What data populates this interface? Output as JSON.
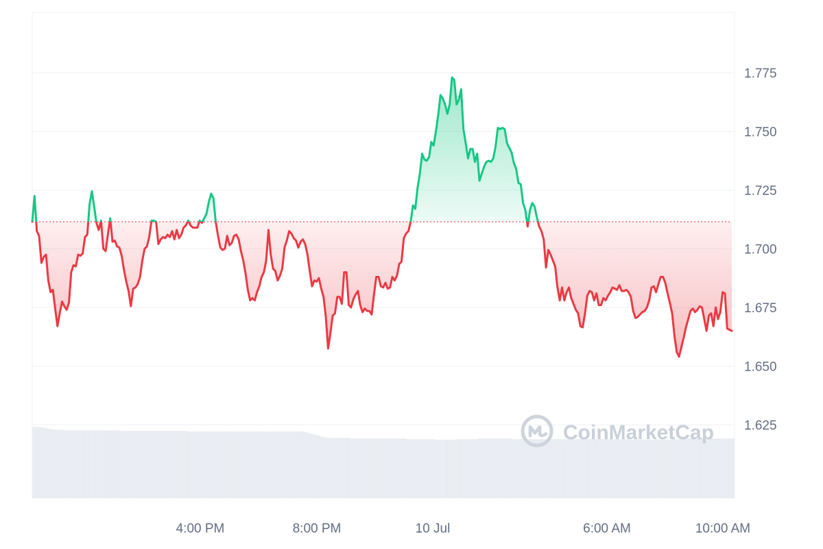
{
  "chart_data": {
    "type": "area",
    "x_range": [
      "09 Jul 11:00",
      "10 Jul 11:00"
    ],
    "x_tick_labels": [
      "4:00 PM",
      "8:00 PM",
      "10 Jul",
      "6:00 AM",
      "10:00 AM"
    ],
    "y_tick_labels": [
      "1.775",
      "1.750",
      "1.725",
      "1.700",
      "1.675",
      "1.650",
      "1.625"
    ],
    "y_ticks": [
      1.775,
      1.75,
      1.725,
      1.7,
      1.675,
      1.65,
      1.625
    ],
    "ylim": [
      1.6,
      1.8
    ],
    "baseline": 1.7115,
    "grid": true,
    "colors": {
      "up": "#16c784",
      "down": "#ea3943",
      "up_fill": "#16c784",
      "down_fill": "#ea3943",
      "baseline": "#ea3943",
      "grid": "#eff2f5",
      "volume": "#e3e7ee",
      "watermark": "#c8d0da"
    },
    "series": [
      {
        "values": [
          1.7115,
          1.7225,
          1.7075,
          1.7055,
          1.694,
          1.6965,
          1.6975,
          1.6865,
          1.6815,
          1.6825,
          1.6745,
          1.667,
          1.6725,
          1.6775,
          1.6755,
          1.674,
          1.677,
          1.69,
          1.693,
          1.6925,
          1.6975,
          1.697,
          1.698,
          1.705,
          1.706,
          1.719,
          1.7245,
          1.718,
          1.711,
          1.708,
          1.712,
          1.7,
          1.699,
          1.706,
          1.713,
          1.703,
          1.7035,
          1.701,
          1.7005,
          1.697,
          1.691,
          1.686,
          1.682,
          1.6755,
          1.683,
          1.6835,
          1.685,
          1.688,
          1.695,
          1.7,
          1.701,
          1.705,
          1.712,
          1.712,
          1.7115,
          1.702,
          1.704,
          1.705,
          1.7045,
          1.706,
          1.705,
          1.7075,
          1.704,
          1.708,
          1.7045,
          1.706,
          1.709,
          1.71,
          1.712,
          1.71,
          1.709,
          1.709,
          1.709,
          1.712,
          1.711,
          1.713,
          1.715,
          1.72,
          1.7235,
          1.7215,
          1.7115,
          1.7055,
          1.7005,
          1.6995,
          1.7,
          1.7055,
          1.7015,
          1.7025,
          1.7055,
          1.706,
          1.704,
          1.699,
          1.695,
          1.6895,
          1.6825,
          1.678,
          1.679,
          1.678,
          1.6815,
          1.684,
          1.688,
          1.69,
          1.695,
          1.708,
          1.6975,
          1.6915,
          1.6905,
          1.6865,
          1.6885,
          1.6915,
          1.7005,
          1.7035,
          1.7075,
          1.7065,
          1.7045,
          1.7035,
          1.7005,
          1.703,
          1.704,
          1.702,
          1.6975,
          1.6905,
          1.684,
          1.6865,
          1.686,
          1.6875,
          1.683,
          1.6795,
          1.671,
          1.6575,
          1.664,
          1.6715,
          1.6725,
          1.6795,
          1.6795,
          1.6765,
          1.69,
          1.69,
          1.676,
          1.675,
          1.6785,
          1.6805,
          1.682,
          1.676,
          1.673,
          1.6745,
          1.6735,
          1.6735,
          1.672,
          1.6805,
          1.688,
          1.688,
          1.684,
          1.6835,
          1.6855,
          1.683,
          1.6835,
          1.688,
          1.6865,
          1.6885,
          1.6935,
          1.6945,
          1.7045,
          1.7065,
          1.7075,
          1.7115,
          1.7185,
          1.717,
          1.726,
          1.732,
          1.7405,
          1.738,
          1.7375,
          1.739,
          1.7455,
          1.744,
          1.75,
          1.757,
          1.7655,
          1.764,
          1.7615,
          1.7575,
          1.7615,
          1.773,
          1.772,
          1.7615,
          1.7635,
          1.768,
          1.751,
          1.745,
          1.7385,
          1.7425,
          1.7425,
          1.737,
          1.7405,
          1.729,
          1.732,
          1.735,
          1.737,
          1.7375,
          1.737,
          1.7385,
          1.7435,
          1.7515,
          1.751,
          1.7515,
          1.751,
          1.745,
          1.743,
          1.741,
          1.7365,
          1.734,
          1.728,
          1.7275,
          1.7195,
          1.7165,
          1.7095,
          1.7165,
          1.7195,
          1.718,
          1.7135,
          1.7095,
          1.7075,
          1.704,
          1.692,
          1.6995,
          1.6975,
          1.695,
          1.6925,
          1.6835,
          1.678,
          1.6835,
          1.678,
          1.6815,
          1.6835,
          1.679,
          1.6765,
          1.674,
          1.6725,
          1.667,
          1.6665,
          1.6725,
          1.68,
          1.682,
          1.6815,
          1.678,
          1.681,
          1.676,
          1.676,
          1.679,
          1.678,
          1.68,
          1.6815,
          1.6835,
          1.683,
          1.6825,
          1.6845,
          1.682,
          1.682,
          1.6825,
          1.6815,
          1.6795,
          1.6735,
          1.6705,
          1.671,
          1.672,
          1.673,
          1.6735,
          1.675,
          1.678,
          1.6835,
          1.684,
          1.6815,
          1.685,
          1.688,
          1.688,
          1.6855,
          1.681,
          1.677,
          1.6725,
          1.663,
          1.656,
          1.654,
          1.658,
          1.662,
          1.6665,
          1.67,
          1.6735,
          1.6745,
          1.673,
          1.674,
          1.6755,
          1.675,
          1.67,
          1.665,
          1.6715,
          1.6725,
          1.667,
          1.675,
          1.67,
          1.673,
          1.6815,
          1.681,
          1.666,
          1.6655,
          1.665
        ]
      }
    ],
    "volume": [
      0.122,
      0.122,
      0.122,
      0.122,
      0.121,
      0.121,
      0.12,
      0.119,
      0.118,
      0.118,
      0.117,
      0.117,
      0.117,
      0.117,
      0.117,
      0.116,
      0.116,
      0.116,
      0.116,
      0.116,
      0.116,
      0.116,
      0.116,
      0.116,
      0.116,
      0.116,
      0.116,
      0.116,
      0.116,
      0.116,
      0.116,
      0.116,
      0.116,
      0.116,
      0.116,
      0.116,
      0.116,
      0.116,
      0.116,
      0.116,
      0.116,
      0.115,
      0.115,
      0.115,
      0.115,
      0.115,
      0.115,
      0.115,
      0.115,
      0.115,
      0.115,
      0.115,
      0.115,
      0.115,
      0.115,
      0.115,
      0.115,
      0.115,
      0.115,
      0.115,
      0.115,
      0.115,
      0.115,
      0.115,
      0.115,
      0.115,
      0.115,
      0.115,
      0.115,
      0.115,
      0.115,
      0.115,
      0.114,
      0.114,
      0.114,
      0.114,
      0.114,
      0.114,
      0.114,
      0.114,
      0.114,
      0.114,
      0.114,
      0.114,
      0.114,
      0.114,
      0.114,
      0.114,
      0.114,
      0.114,
      0.114,
      0.114,
      0.114,
      0.114,
      0.114,
      0.114,
      0.114,
      0.114,
      0.114,
      0.114,
      0.114,
      0.114,
      0.114,
      0.114,
      0.114,
      0.114,
      0.114,
      0.114,
      0.114,
      0.114,
      0.114,
      0.114,
      0.114,
      0.114,
      0.114,
      0.114,
      0.114,
      0.114,
      0.114,
      0.114,
      0.114,
      0.114,
      0.114,
      0.114,
      0.114,
      0.114,
      0.113,
      0.112,
      0.111,
      0.11,
      0.109,
      0.108,
      0.107,
      0.106,
      0.105,
      0.104,
      0.104,
      0.103,
      0.103,
      0.103,
      0.103,
      0.103,
      0.103,
      0.103,
      0.103,
      0.103,
      0.103,
      0.102,
      0.102,
      0.102,
      0.102,
      0.102,
      0.102,
      0.102,
      0.102,
      0.102,
      0.102,
      0.102,
      0.102,
      0.102,
      0.102,
      0.102,
      0.102,
      0.102,
      0.102,
      0.102,
      0.102,
      0.102,
      0.102,
      0.102,
      0.102,
      0.102,
      0.102,
      0.101,
      0.101,
      0.101,
      0.101,
      0.101,
      0.101,
      0.101,
      0.101,
      0.101,
      0.101,
      0.101,
      0.101,
      0.101,
      0.1,
      0.1,
      0.1,
      0.1,
      0.1,
      0.1,
      0.1,
      0.1,
      0.1,
      0.1,
      0.101,
      0.101,
      0.101,
      0.101,
      0.101,
      0.101,
      0.101,
      0.101,
      0.101,
      0.101,
      0.102,
      0.102,
      0.102,
      0.102,
      0.102,
      0.102,
      0.102,
      0.102,
      0.102,
      0.102,
      0.102,
      0.102,
      0.102,
      0.102,
      0.102,
      0.102,
      0.101,
      0.101,
      0.101,
      0.101,
      0.101,
      0.101,
      0.101,
      0.101,
      0.101,
      0.101,
      0.101,
      0.101,
      0.101,
      0.101,
      0.101,
      0.101,
      0.101,
      0.101,
      0.101,
      0.101,
      0.101,
      0.101,
      0.101,
      0.101,
      0.101,
      0.101,
      0.101,
      0.101,
      0.101,
      0.101,
      0.101,
      0.101,
      0.101,
      0.101,
      0.101,
      0.101,
      0.101,
      0.101,
      0.101,
      0.101,
      0.101,
      0.101,
      0.101,
      0.101,
      0.101,
      0.101,
      0.101,
      0.101,
      0.101,
      0.101,
      0.101,
      0.101,
      0.101,
      0.101,
      0.1,
      0.1,
      0.1,
      0.1,
      0.1,
      0.1,
      0.1,
      0.1,
      0.1,
      0.1,
      0.1,
      0.1,
      0.1,
      0.1,
      0.1,
      0.1,
      0.1,
      0.1,
      0.1,
      0.1,
      0.1,
      0.101,
      0.101,
      0.101,
      0.101,
      0.101,
      0.101,
      0.102,
      0.102,
      0.102,
      0.102,
      0.102,
      0.102,
      0.102,
      0.102,
      0.102,
      0.102,
      0.102,
      0.102,
      0.102,
      0.102,
      0.102,
      0.102,
      0.102,
      0.102,
      0.102,
      0.102,
      0.102,
      0.102
    ]
  },
  "watermark": {
    "text": "CoinMarketCap",
    "icon": "coinmarketcap-logo-icon"
  }
}
